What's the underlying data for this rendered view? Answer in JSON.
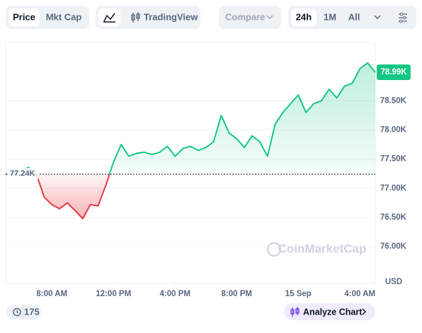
{
  "ui": {
    "tabs": [
      "Price",
      "Mkt Cap"
    ],
    "tradingview": "TradingView",
    "compare": "Compare",
    "ranges": [
      "24h",
      "1M",
      "All"
    ],
    "watermark": "CoinMarketCap",
    "currency": "USD",
    "comments": "175",
    "analyze": "Analyze Chart"
  },
  "chart_data": {
    "type": "line",
    "x": [
      0,
      0.5,
      1,
      1.5,
      2,
      2.5,
      3,
      3.5,
      4,
      4.5,
      5,
      5.5,
      6,
      6.5,
      7,
      7.5,
      8,
      8.5,
      9,
      9.5,
      10,
      10.5,
      11,
      11.5,
      12,
      12.5,
      13,
      13.5,
      14,
      14.5,
      15,
      15.5,
      16,
      16.5,
      17,
      17.5,
      18,
      18.5,
      19,
      19.5,
      20,
      20.5,
      21,
      21.5,
      22,
      22.5,
      23,
      23.5,
      24
    ],
    "series": [
      {
        "name": "Price",
        "color": "#16c784",
        "down_color": "#ea3943",
        "values": [
          77.24,
          77.26,
          77.3,
          77.36,
          77.24,
          76.85,
          76.72,
          76.65,
          76.75,
          76.62,
          76.48,
          76.72,
          76.7,
          77.05,
          77.45,
          77.75,
          77.55,
          77.6,
          77.62,
          77.58,
          77.62,
          77.72,
          77.55,
          77.68,
          77.72,
          77.65,
          77.7,
          77.8,
          78.25,
          77.95,
          77.85,
          77.7,
          77.9,
          77.8,
          77.55,
          78.1,
          78.3,
          78.45,
          78.6,
          78.3,
          78.45,
          78.5,
          78.7,
          78.55,
          78.75,
          78.8,
          79.05,
          79.15,
          78.99
        ]
      }
    ],
    "baseline": {
      "value": 77.24,
      "label": "77.24K"
    },
    "current_price": {
      "value": 78.99,
      "label": "78.99K"
    },
    "xlim": [
      0,
      24
    ],
    "xticks": [
      {
        "value": 3,
        "label": "8:00 AM"
      },
      {
        "value": 7,
        "label": "12:00 PM"
      },
      {
        "value": 11,
        "label": "4:00 PM"
      },
      {
        "value": 15,
        "label": "8:00 PM"
      },
      {
        "value": 19,
        "label": "15 Sep"
      },
      {
        "value": 23,
        "label": "4:00 AM"
      }
    ],
    "ylim": [
      75.37,
      79.5
    ],
    "yticks": [
      {
        "value": 76,
        "label": "76.00K"
      },
      {
        "value": 76.5,
        "label": "76.50K"
      },
      {
        "value": 77,
        "label": "77.00K"
      },
      {
        "value": 77.5,
        "label": "77.50K"
      },
      {
        "value": 78,
        "label": "78.00K"
      },
      {
        "value": 78.5,
        "label": "78.50K"
      }
    ],
    "grid": true
  }
}
